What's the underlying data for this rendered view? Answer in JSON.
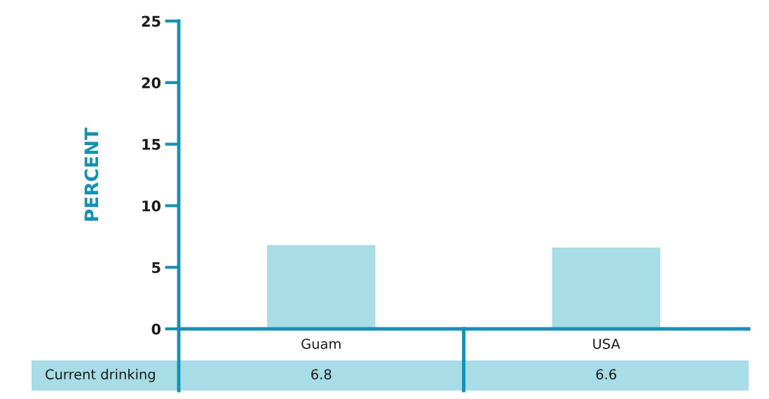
{
  "chart_data": {
    "type": "bar",
    "ylabel": "PERCENT",
    "categories": [
      "Guam",
      "USA"
    ],
    "series": [
      {
        "name": "Current drinking",
        "color": "#a8dce6",
        "values": [
          6.8,
          6.6
        ]
      }
    ],
    "ylim": [
      0,
      25
    ],
    "yticks": [
      0,
      5,
      10,
      15,
      20,
      25
    ],
    "grid": false,
    "data_labels": true
  }
}
